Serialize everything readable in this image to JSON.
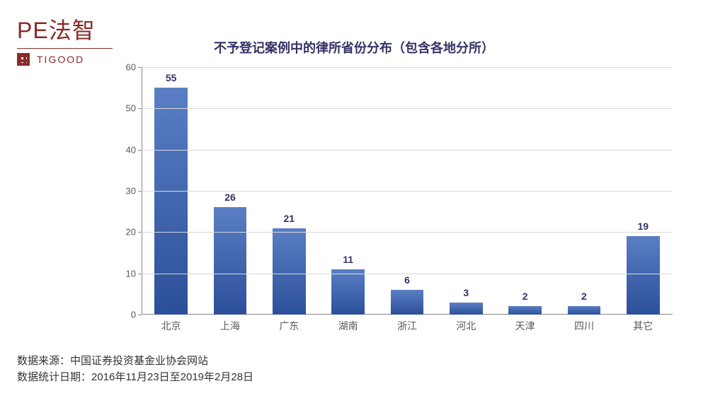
{
  "logo": {
    "main": "PE法智",
    "brand": "TIGOOD"
  },
  "chart": {
    "type": "bar",
    "title": "不予登记案例中的律所省份分布（包含各地分所）",
    "title_color": "#333366",
    "title_fontsize": 18,
    "categories": [
      "北京",
      "上海",
      "广东",
      "湖南",
      "浙江",
      "河北",
      "天津",
      "四川",
      "其它"
    ],
    "values": [
      55,
      26,
      21,
      11,
      6,
      3,
      2,
      2,
      19
    ],
    "ylim": [
      0,
      60
    ],
    "ytick_step": 10,
    "yticks": [
      0,
      10,
      20,
      30,
      40,
      50,
      60
    ],
    "bar_gradient_top": "#5a7fc4",
    "bar_gradient_bottom": "#2c4f99",
    "grid_color": "#d9d9d9",
    "axis_color": "#888888",
    "label_color": "#595959",
    "value_label_color": "#333366",
    "label_fontsize": 14,
    "tick_fontsize": 13,
    "background_color": "#ffffff",
    "bar_width": 0.56
  },
  "footer": {
    "source_label": "数据来源：",
    "source_value": "中国证券投资基金业协会网站",
    "date_label": "数据统计日期：",
    "date_value": "2016年11月23日至2019年2月28日"
  }
}
